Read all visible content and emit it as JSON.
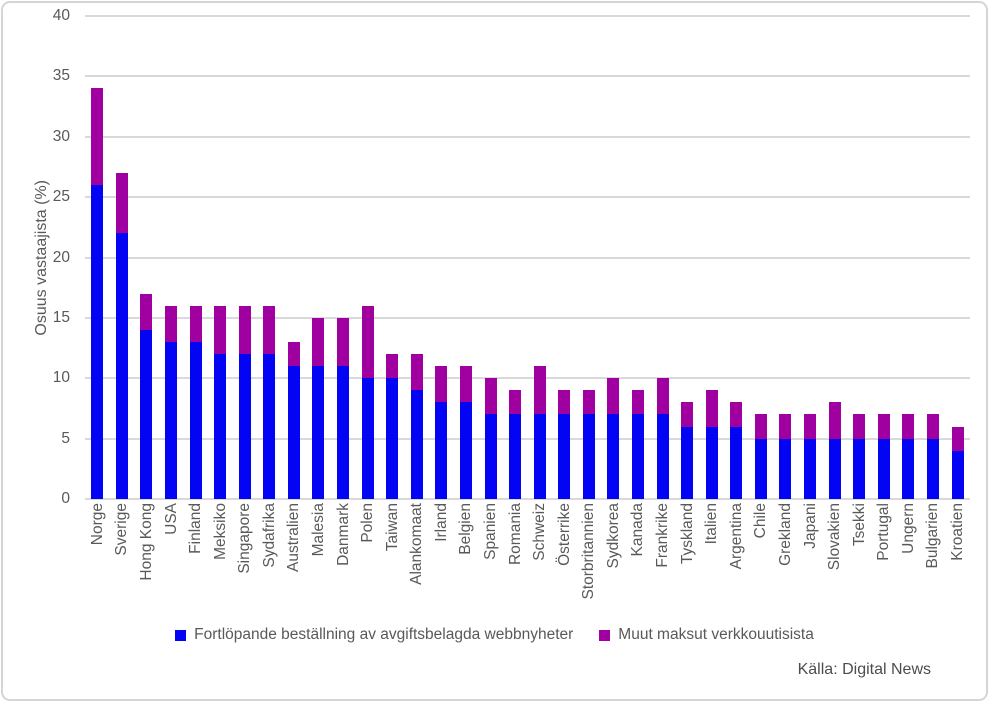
{
  "chart_data": {
    "type": "bar",
    "stacked": true,
    "title": "",
    "xlabel": "",
    "ylabel": "Osuus vastaajista (%)",
    "ylim": [
      0,
      40
    ],
    "yticks": [
      0,
      5,
      10,
      15,
      20,
      25,
      30,
      35,
      40
    ],
    "grid": true,
    "legend_position": "bottom",
    "source": "Källa: Digital News",
    "categories": [
      "Norge",
      "Sverige",
      "Hong Kong",
      "USA",
      "Finland",
      "Meksiko",
      "Singapore",
      "Sydafrika",
      "Australien",
      "Malesia",
      "Danmark",
      "Polen",
      "Taiwan",
      "Alankomaat",
      "Irland",
      "Belgien",
      "Spanien",
      "Romania",
      "Schweiz",
      "Österrike",
      "Storbritannien",
      "Sydkorea",
      "Kanada",
      "Frankrike",
      "Tyskland",
      "Italien",
      "Argentina",
      "Chile",
      "Grekland",
      "Japani",
      "Slovakien",
      "Tsekki",
      "Portugal",
      "Ungern",
      "Bulgarien",
      "Kroatien"
    ],
    "series": [
      {
        "name": "Fortlöpande beställning av avgiftsbelagda webbnyheter",
        "color": "#0404f5",
        "values": [
          26,
          22,
          14,
          13,
          13,
          12,
          12,
          12,
          11,
          11,
          11,
          10,
          10,
          9,
          8,
          8,
          7,
          7,
          7,
          7,
          7,
          7,
          7,
          7,
          6,
          6,
          6,
          5,
          5,
          5,
          5,
          5,
          5,
          5,
          5,
          4
        ]
      },
      {
        "name": "Muut maksut verkkouutisista",
        "color": "#a000a0",
        "values": [
          8,
          5,
          3,
          3,
          3,
          4,
          4,
          4,
          2,
          4,
          4,
          6,
          2,
          3,
          3,
          3,
          3,
          2,
          4,
          2,
          2,
          3,
          2,
          3,
          2,
          3,
          2,
          2,
          2,
          2,
          3,
          2,
          2,
          2,
          2,
          2
        ]
      }
    ],
    "totals": [
      34,
      27,
      17,
      16,
      16,
      16,
      16,
      16,
      13,
      15,
      15,
      16,
      12,
      12,
      11,
      11,
      10,
      9,
      11,
      9,
      9,
      10,
      9,
      10,
      8,
      9,
      8,
      7,
      7,
      7,
      8,
      7,
      7,
      7,
      7,
      6
    ]
  },
  "colors": {
    "grid": "#d9d9d9",
    "axis_text": "#595959",
    "frame_border": "#d5d5d5"
  }
}
